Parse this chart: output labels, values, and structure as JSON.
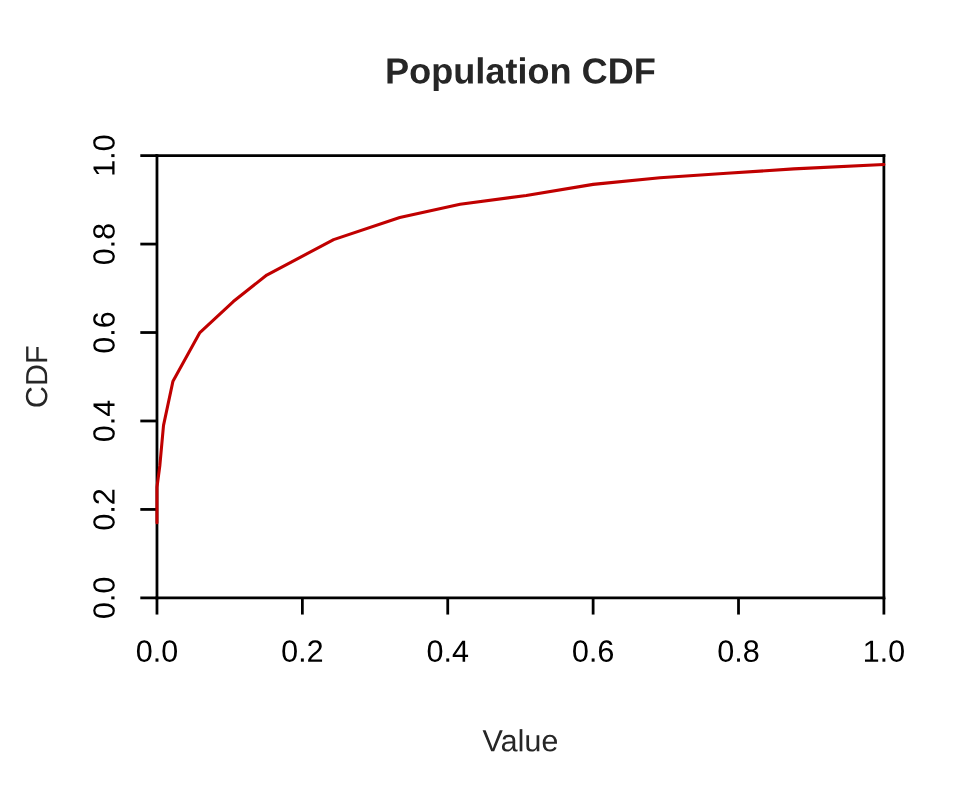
{
  "chart_data": {
    "type": "line",
    "title": "Population CDF",
    "xlabel": "Value",
    "ylabel": "CDF",
    "xlim": [
      0,
      1
    ],
    "ylim": [
      0,
      1
    ],
    "xticks": [
      {
        "value": 0,
        "label": "0.0"
      },
      0.2,
      0.4,
      0.6,
      0.8,
      {
        "value": 1,
        "label": "1.0"
      }
    ],
    "yticks": [
      {
        "value": 0,
        "label": "0.0"
      },
      0.2,
      0.4,
      0.6,
      0.8,
      {
        "value": 1,
        "label": "1.0"
      }
    ],
    "grid": false,
    "series": [
      {
        "color": "#c00000",
        "x": [
          0,
          0,
          0.004,
          0.009,
          0.022,
          0.059,
          0.105,
          0.151,
          0.197,
          0.243,
          0.334,
          0.417,
          0.508,
          0.6,
          0.692,
          0.784,
          0.876,
          1.0
        ],
        "values": [
          0.17,
          0.25,
          0.3,
          0.39,
          0.49,
          0.6,
          0.67,
          0.73,
          0.77,
          0.81,
          0.86,
          0.89,
          0.91,
          0.935,
          0.95,
          0.96,
          0.97,
          0.98
        ]
      }
    ]
  }
}
